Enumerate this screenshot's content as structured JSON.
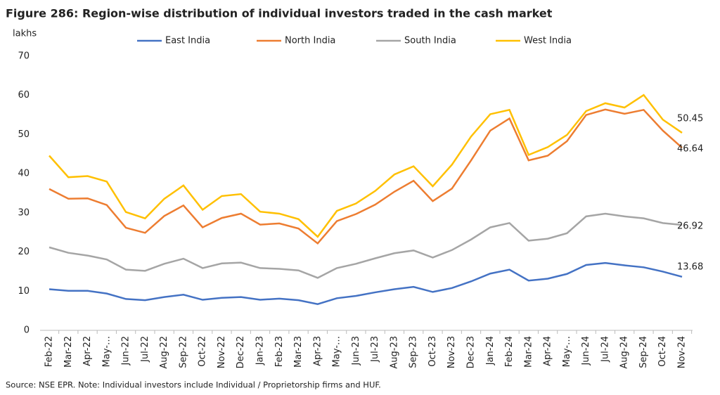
{
  "chart_data": {
    "type": "line",
    "title": "Figure 286: Region-wise distribution of individual investors traded in the cash market",
    "ylabel": "lakhs",
    "source": "Source: NSE EPR. Note: Individual investors include Individual / Proprietorship firms and HUF.",
    "categories": [
      "Feb-22",
      "Mar-22",
      "Apr-22",
      "May-…",
      "Jun-22",
      "Jul-22",
      "Aug-22",
      "Sep-22",
      "Oct-22",
      "Nov-22",
      "Dec-22",
      "Jan-23",
      "Feb-23",
      "Mar-23",
      "Apr-23",
      "May-…",
      "Jun-23",
      "Jul-23",
      "Aug-23",
      "Sep-23",
      "Oct-23",
      "Nov-23",
      "Dec-23",
      "Jan-24",
      "Feb-24",
      "Mar-24",
      "Apr-24",
      "May-…",
      "Jun-24",
      "Jul-24",
      "Aug-24",
      "Sep-24",
      "Oct-24",
      "Nov-24"
    ],
    "series": [
      {
        "name": "East India",
        "color": "#4472c4",
        "values": [
          10.5,
          10.1,
          10.1,
          9.4,
          8.0,
          7.7,
          8.5,
          9.1,
          7.8,
          8.3,
          8.5,
          7.8,
          8.1,
          7.7,
          6.7,
          8.2,
          8.8,
          9.7,
          10.5,
          11.1,
          9.8,
          10.8,
          12.5,
          14.5,
          15.5,
          12.7,
          13.2,
          14.4,
          16.7,
          17.2,
          16.6,
          16.1,
          15.0,
          13.68
        ]
      },
      {
        "name": "North India",
        "color": "#ed7d31",
        "values": [
          36.1,
          33.6,
          33.7,
          32.0,
          26.2,
          24.9,
          29.2,
          31.9,
          26.3,
          28.7,
          29.8,
          27.0,
          27.3,
          26.0,
          22.2,
          27.9,
          29.7,
          32.1,
          35.4,
          38.2,
          33.0,
          36.2,
          43.4,
          51.0,
          54.1,
          43.4,
          44.6,
          48.3,
          55.0,
          56.4,
          55.3,
          56.3,
          51.0,
          46.64
        ]
      },
      {
        "name": "South India",
        "color": "#a5a5a5",
        "values": [
          21.2,
          19.8,
          19.1,
          18.1,
          15.5,
          15.2,
          17.0,
          18.3,
          15.9,
          17.1,
          17.3,
          15.9,
          15.7,
          15.3,
          13.4,
          15.9,
          17.0,
          18.4,
          19.7,
          20.4,
          18.6,
          20.5,
          23.2,
          26.3,
          27.4,
          22.9,
          23.4,
          24.8,
          29.1,
          29.8,
          29.1,
          28.6,
          27.4,
          26.92
        ]
      },
      {
        "name": "West India",
        "color": "#ffc000",
        "values": [
          44.6,
          39.1,
          39.4,
          38.0,
          30.2,
          28.6,
          33.6,
          37.0,
          30.8,
          34.3,
          34.8,
          30.3,
          29.8,
          28.4,
          23.9,
          30.5,
          32.4,
          35.6,
          39.8,
          41.9,
          36.8,
          42.3,
          49.5,
          55.2,
          56.3,
          44.8,
          46.8,
          49.9,
          56.0,
          58.0,
          56.9,
          60.1,
          53.8,
          50.45
        ]
      }
    ],
    "ylim": [
      0,
      70
    ],
    "yticks": [
      0,
      10,
      20,
      30,
      40,
      50,
      60,
      70
    ],
    "grid": false
  }
}
